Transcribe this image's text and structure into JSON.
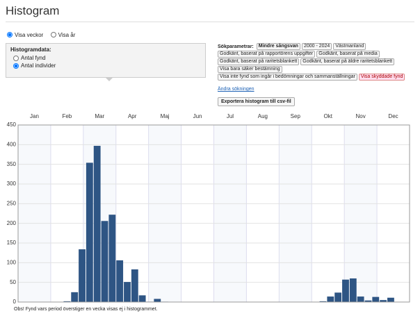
{
  "header": {
    "title": "Histogram"
  },
  "view_options": [
    {
      "label": "Visa veckor",
      "checked": true
    },
    {
      "label": "Visa år",
      "checked": false
    }
  ],
  "histogram_data": {
    "title": "Histogramdata:",
    "options": [
      {
        "label": "Antal fynd",
        "checked": false
      },
      {
        "label": "Antal individer",
        "checked": true
      }
    ]
  },
  "search": {
    "label": "Sökparametrar:",
    "tags": [
      {
        "text": "Mindre sångsvan",
        "bold": true,
        "highlight": false
      },
      {
        "text": "2000 - 2024",
        "bold": false,
        "highlight": false
      },
      {
        "text": "Västmanland",
        "bold": false,
        "highlight": false
      },
      {
        "text": "Godkänt, baserat på rapportörens uppgifter",
        "bold": false,
        "highlight": false
      },
      {
        "text": "Godkänt, baserat på media",
        "bold": false,
        "highlight": false
      },
      {
        "text": "Godkänt, baserat på raritetsblankett",
        "bold": false,
        "highlight": false
      },
      {
        "text": "Godkänt, baserat på äldre raritetsblankett",
        "bold": false,
        "highlight": false
      },
      {
        "text": "Visa bara säker bestämning",
        "bold": false,
        "highlight": false
      },
      {
        "text": "Visa inte fynd som ingår i bedömningar och sammanställningar",
        "bold": false,
        "highlight": false
      },
      {
        "text": "Visa skyddade fynd",
        "bold": false,
        "highlight": true
      }
    ],
    "link": "Ändra sökningen"
  },
  "export_button": "Exportera histogram till csv-fil",
  "chart_data": {
    "type": "bar",
    "categories": [
      null,
      null,
      null,
      null,
      null,
      null,
      null,
      null,
      null,
      null,
      null,
      null,
      null,
      null,
      null,
      null,
      null,
      null,
      null,
      null,
      null,
      null,
      null,
      null,
      null,
      null,
      null,
      null,
      null,
      null,
      null,
      null,
      null,
      null,
      null,
      null,
      null,
      null,
      null,
      null,
      null,
      null,
      null,
      null,
      null,
      null,
      null,
      null,
      null,
      null,
      null,
      null
    ],
    "values": [
      0,
      0,
      0,
      0,
      0,
      0,
      2,
      25,
      134,
      354,
      397,
      206,
      222,
      106,
      51,
      83,
      17,
      1,
      8,
      1,
      0,
      0,
      0,
      0,
      0,
      0,
      0,
      0,
      0,
      0,
      0,
      0,
      0,
      0,
      0,
      0,
      0,
      0,
      0,
      0,
      2,
      14,
      24,
      57,
      60,
      14,
      4,
      13,
      5,
      11,
      0,
      0
    ],
    "months": [
      "Jan",
      "Feb",
      "Mar",
      "Apr",
      "Maj",
      "Jun",
      "Jul",
      "Aug",
      "Sep",
      "Okt",
      "Nov",
      "Dec"
    ],
    "color": "#2e5584",
    "ylim": [
      0,
      450
    ],
    "yticks": [
      0,
      50,
      100,
      150,
      200,
      250,
      300,
      350,
      400,
      450
    ],
    "grid": true
  },
  "footnote": "Obs! Fynd vars period överstiger en vecka visas ej i histogrammet."
}
